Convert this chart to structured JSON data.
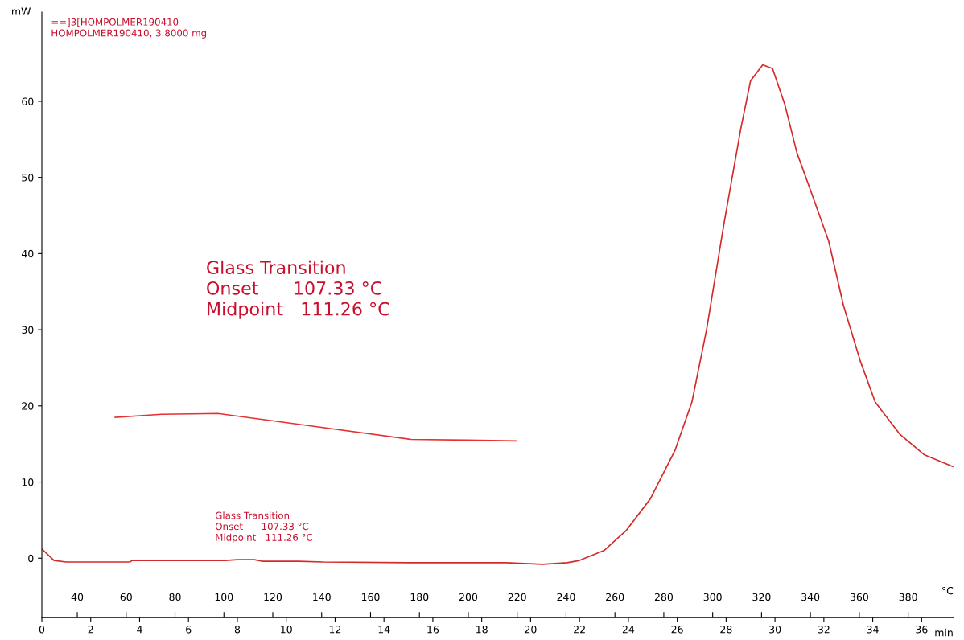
{
  "chart_data": {
    "type": "line",
    "xlabel": "min",
    "ylabel": "mW",
    "x2label": "°C",
    "xlim": [
      0,
      37.3
    ],
    "xticks": [
      0,
      2,
      4,
      6,
      8,
      10,
      12,
      14,
      16,
      18,
      20,
      22,
      24,
      26,
      28,
      30,
      32,
      34,
      36
    ],
    "x2lim": [
      25.5,
      398.5
    ],
    "x2ticks": [
      40,
      60,
      80,
      100,
      120,
      140,
      160,
      180,
      200,
      220,
      240,
      260,
      280,
      300,
      320,
      340,
      360,
      380
    ],
    "ylim": [
      -7.8,
      71.7
    ],
    "yticks": [
      0,
      10,
      20,
      30,
      40,
      50,
      60
    ],
    "grid": false,
    "legend": false,
    "series": [
      {
        "color": "#d42a2a",
        "x": [
          0,
          0.5,
          1,
          3.6,
          3.7,
          7.5,
          8.0,
          8.7,
          9.0,
          10.5,
          11.5,
          15,
          19,
          20.5,
          21.5,
          22.0,
          23.0,
          23.9,
          24.9,
          25.9,
          26.6,
          27.2,
          27.9,
          28.6,
          29.0,
          29.5,
          29.9,
          30.4,
          30.9,
          31.5,
          32.2,
          32.8,
          33.5,
          34.1,
          35.1,
          36.1,
          37.3
        ],
        "values": [
          1.2,
          -0.3,
          -0.5,
          -0.5,
          -0.3,
          -0.3,
          -0.2,
          -0.2,
          -0.4,
          -0.4,
          -0.5,
          -0.6,
          -0.6,
          -0.8,
          -0.6,
          -0.3,
          1.0,
          3.6,
          7.8,
          14.1,
          20.5,
          30.0,
          43.7,
          56.4,
          62.7,
          64.8,
          64.3,
          59.6,
          53.2,
          47.9,
          41.6,
          33.2,
          25.8,
          20.5,
          16.3,
          13.6,
          12.0
        ]
      },
      {
        "color": "#e83030",
        "x": [
          3.0,
          4.9,
          7.2,
          10.7,
          15.1,
          17.4,
          19.4
        ],
        "values": [
          18.5,
          18.9,
          19.0,
          17.5,
          15.6,
          15.5,
          15.4
        ]
      }
    ],
    "annotations": [
      "==]3[HOMPOLMER190410\nHOMPOLMER190410, 3.8000 mg",
      "Glass Transition\nOnset      107.33 °C\nMidpoint   111.26 °C",
      "Glass Transition\nOnset      107.33 °C\nMidpoint   111.26 °C"
    ]
  }
}
